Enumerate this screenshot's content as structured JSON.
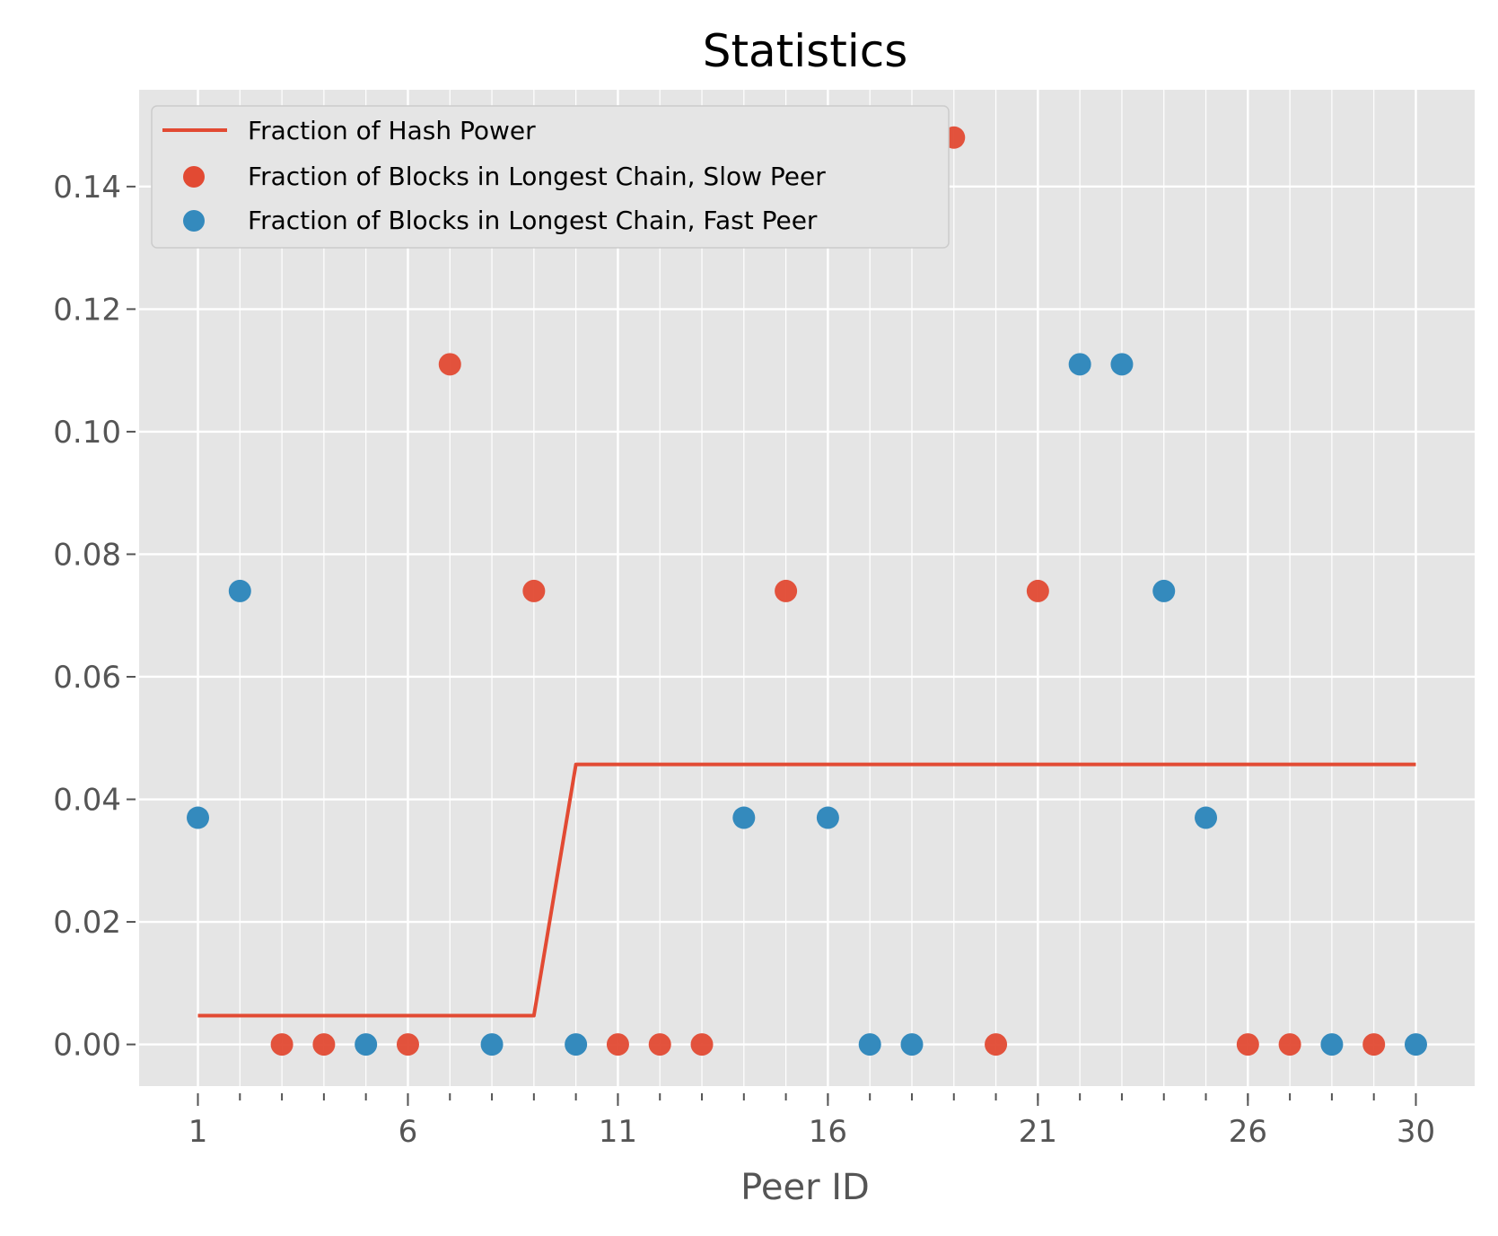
{
  "chart_data": {
    "type": "scatter",
    "title": "Statistics",
    "xlabel": "Peer ID",
    "ylabel": "",
    "xlim": [
      -0.4,
      31.4
    ],
    "ylim": [
      -0.0068,
      0.1558
    ],
    "x_major_ticks": [
      1,
      6,
      11,
      16,
      21,
      26,
      30
    ],
    "x_minor_ticks": [
      1,
      2,
      3,
      4,
      5,
      6,
      7,
      8,
      9,
      10,
      11,
      12,
      13,
      14,
      15,
      16,
      17,
      18,
      19,
      20,
      21,
      22,
      23,
      24,
      25,
      26,
      27,
      28,
      29,
      30
    ],
    "y_ticks": [
      0.0,
      0.02,
      0.04,
      0.06,
      0.08,
      0.1,
      0.12,
      0.14
    ],
    "y_tick_labels": [
      "0.00",
      "0.02",
      "0.04",
      "0.06",
      "0.08",
      "0.10",
      "0.12",
      "0.14"
    ],
    "grid": true,
    "legend_position": "top-left",
    "colors": {
      "red": "#E24A33",
      "blue": "#348ABD",
      "panel": "#E5E5E5",
      "grid": "#FFFFFF"
    },
    "line_series": {
      "name": "Fraction of Hash Power",
      "x": [
        1,
        2,
        3,
        4,
        5,
        6,
        7,
        8,
        9,
        10,
        11,
        12,
        13,
        14,
        15,
        16,
        17,
        18,
        19,
        20,
        21,
        22,
        23,
        24,
        25,
        26,
        27,
        28,
        29,
        30
      ],
      "y": [
        0.0047,
        0.0047,
        0.0047,
        0.0047,
        0.0047,
        0.0047,
        0.0047,
        0.0047,
        0.0047,
        0.0457,
        0.0457,
        0.0457,
        0.0457,
        0.0457,
        0.0457,
        0.0457,
        0.0457,
        0.0457,
        0.0457,
        0.0457,
        0.0457,
        0.0457,
        0.0457,
        0.0457,
        0.0457,
        0.0457,
        0.0457,
        0.0457,
        0.0457,
        0.0457
      ]
    },
    "slow_series": {
      "name": "Fraction of Blocks in Longest Chain, Slow Peer",
      "points": [
        [
          3,
          0.0
        ],
        [
          4,
          0.0
        ],
        [
          6,
          0.0
        ],
        [
          7,
          0.111
        ],
        [
          9,
          0.074
        ],
        [
          11,
          0.0
        ],
        [
          12,
          0.0
        ],
        [
          13,
          0.0
        ],
        [
          15,
          0.074
        ],
        [
          19,
          0.148
        ],
        [
          20,
          0.0
        ],
        [
          21,
          0.074
        ],
        [
          26,
          0.0
        ],
        [
          27,
          0.0
        ],
        [
          29,
          0.0
        ]
      ]
    },
    "fast_series": {
      "name": "Fraction of Blocks in Longest Chain, Fast Peer",
      "points": [
        [
          1,
          0.037
        ],
        [
          2,
          0.074
        ],
        [
          5,
          0.0
        ],
        [
          8,
          0.0
        ],
        [
          10,
          0.0
        ],
        [
          14,
          0.037
        ],
        [
          16,
          0.037
        ],
        [
          17,
          0.0
        ],
        [
          18,
          0.0
        ],
        [
          22,
          0.111
        ],
        [
          23,
          0.111
        ],
        [
          24,
          0.074
        ],
        [
          25,
          0.037
        ],
        [
          28,
          0.0
        ],
        [
          30,
          0.0
        ]
      ]
    }
  }
}
